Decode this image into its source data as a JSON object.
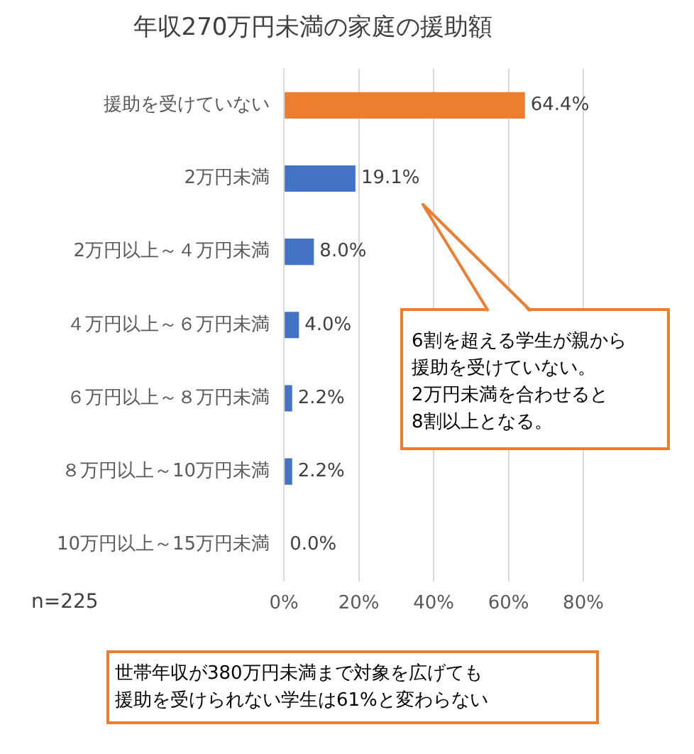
{
  "chart_data": {
    "type": "bar",
    "orientation": "horizontal",
    "title": "年収270万円未満の家庭の援助額",
    "categories": [
      "援助を受けていない",
      "2万円未満",
      "2万円以上～４万円未満",
      "４万円以上～６万円未満",
      "６万円以上～８万円未満",
      "８万円以上～10万円未満",
      "10万円以上～15万円未満"
    ],
    "values": [
      64.4,
      19.1,
      8.0,
      4.0,
      2.2,
      2.2,
      0.0
    ],
    "colors": [
      "#ed7d31",
      "#4472c4",
      "#4472c4",
      "#4472c4",
      "#4472c4",
      "#4472c4",
      "#4472c4"
    ],
    "value_labels": [
      "64.4%",
      "19.1%",
      "8.0%",
      "4.0%",
      "2.2%",
      "2.2%",
      "0.0%"
    ],
    "xlim": [
      0,
      80
    ],
    "xticks": [
      {
        "value": 0,
        "label": "0%"
      },
      {
        "value": 20,
        "label": "20%"
      },
      {
        "value": 40,
        "label": "40%"
      },
      {
        "value": 60,
        "label": "60%"
      },
      {
        "value": 80,
        "label": "80%"
      }
    ],
    "grid": "x",
    "legend": false,
    "annotations": [
      "6割を超える学生が親から援助を受けていない。2万円未満を合わせると8割以上となる。",
      "n=225",
      "世帯年収が380万円未満まで対象を広げても援助を受けられない学生は61%と変わらない"
    ]
  }
}
